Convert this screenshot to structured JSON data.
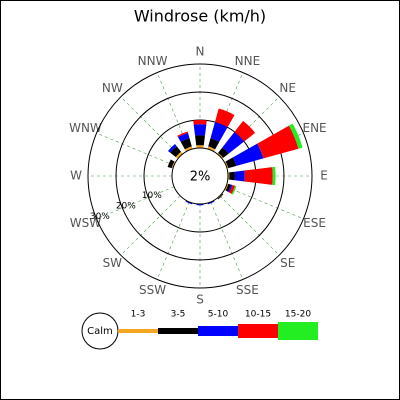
{
  "chart_data": {
    "type": "windrose",
    "title": "Windrose (km/h)",
    "directions": [
      "N",
      "NNE",
      "NE",
      "ENE",
      "E",
      "ESE",
      "SE",
      "SSE",
      "S",
      "SSW",
      "SW",
      "WSW",
      "W",
      "WNW",
      "NW",
      "NNW"
    ],
    "calm_label": "Calm",
    "calm_value": 2,
    "calm_value_label": "2%",
    "rlim": [
      0,
      30
    ],
    "rticks": [
      {
        "value": 10,
        "label": "10%"
      },
      {
        "value": 20,
        "label": "20%"
      },
      {
        "value": 30,
        "label": "30%"
      }
    ],
    "grid": true,
    "series": [
      {
        "name": "1-3",
        "color": "#f5a623",
        "values": [
          1,
          1,
          0.5,
          0.5,
          0.5,
          0.5,
          0.3,
          0,
          0,
          0,
          0,
          0,
          0,
          0.5,
          1,
          1
        ]
      },
      {
        "name": "3-5",
        "color": "#000000",
        "values": [
          3.5,
          3,
          2.5,
          3,
          2,
          1,
          0.3,
          0,
          0,
          0,
          0,
          0,
          0,
          1.5,
          2.5,
          3
        ]
      },
      {
        "name": "5-10",
        "color": "#0000ff",
        "values": [
          4,
          6,
          7,
          10,
          3.5,
          0.5,
          0,
          0.5,
          0.5,
          0.5,
          0,
          0,
          0,
          0,
          1,
          2
        ]
      },
      {
        "name": "10-15",
        "color": "#ff0000",
        "values": [
          1.5,
          5,
          5,
          13,
          10,
          1,
          0,
          0,
          0,
          0,
          0,
          0,
          0,
          0,
          0,
          0.5
        ]
      },
      {
        "name": "15-20",
        "color": "#22ee22",
        "values": [
          0,
          0,
          0,
          1.5,
          1,
          0.5,
          0,
          0,
          0,
          0,
          0,
          0,
          0,
          0,
          0,
          0
        ]
      }
    ]
  }
}
